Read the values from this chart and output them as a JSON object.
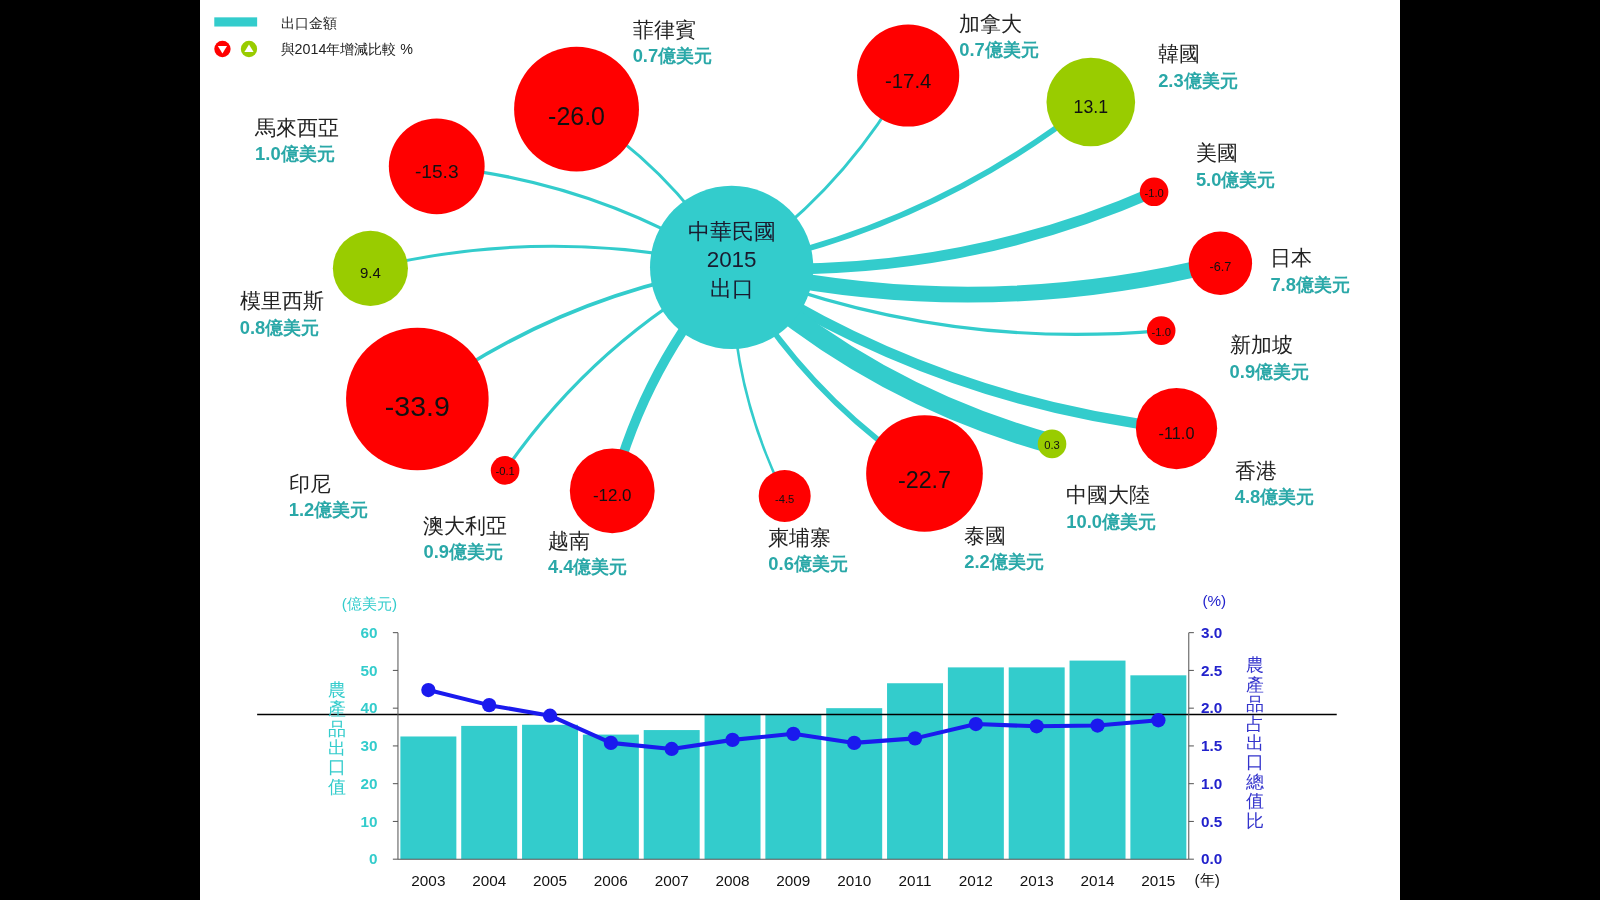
{
  "chart_data": [
    {
      "type": "other",
      "title": "中華民國 2015 出口",
      "legend": "top left",
      "categories": [
        "菲律賓",
        "加拿大",
        "韓國",
        "美國",
        "日本",
        "新加坡",
        "香港",
        "中國大陸",
        "泰國",
        "柬埔寨",
        "越南",
        "澳大利亞",
        "印尼",
        "模里西斯",
        "馬來西亞"
      ],
      "series": [
        {
          "name": "出口金額",
          "color": "#33cccc",
          "values": [
            0.7,
            0.7,
            2.3,
            5.0,
            7.8,
            0.9,
            4.8,
            10.0,
            2.2,
            0.6,
            4.4,
            0.9,
            1.2,
            0.8,
            1.0
          ],
          "value_labels": [
            "0.7億美元",
            "0.7億美元",
            "2.3億美元",
            "5.0億美元",
            "7.8億美元",
            "0.9億美元",
            "4.8億美元",
            "10.0億美元",
            "2.2億美元",
            "0.6億美元",
            "4.4億美元",
            "0.9億美元",
            "1.2億美元",
            "0.8億美元",
            "1.0億美元"
          ]
        },
        {
          "name": "與2014年增減比較 %",
          "colors": [
            "#ff0000",
            "#ff0000",
            "#99cc00",
            "#ff0000",
            "#ff0000",
            "#ff0000",
            "#ff0000",
            "#99cc00",
            "#ff0000",
            "#ff0000",
            "#ff0000",
            "#ff0000",
            "#ff0000",
            "#99cc00",
            "#ff0000"
          ],
          "values": [
            -26.0,
            -17.4,
            13.1,
            -1.0,
            -6.7,
            -1.0,
            -11.0,
            0.3,
            -22.7,
            -4.5,
            -12.0,
            -0.1,
            -33.9,
            9.4,
            -15.3
          ],
          "value_labels": [
            "-26.0",
            "-17.4",
            "13.1",
            "-1.0",
            "-6.7",
            "-1.0",
            "-11.0",
            "0.3",
            "-22.7",
            "-4.5",
            "-12.0",
            "-0.1",
            "-33.9",
            "9.4",
            "-15.3"
          ]
        }
      ]
    },
    {
      "type": "bar",
      "categories": [
        "2003",
        "2004",
        "2005",
        "2006",
        "2007",
        "2008",
        "2009",
        "2010",
        "2011",
        "2012",
        "2013",
        "2014",
        "2015"
      ],
      "series": [
        {
          "type": "bar",
          "color": "#33cccc",
          "values": [
            32.5,
            35.3,
            35.6,
            33.0,
            34.2,
            38.3,
            38.3,
            40.0,
            46.6,
            50.8,
            50.8,
            52.6,
            48.7
          ]
        },
        {
          "type": "line",
          "axis": "y2",
          "color": "#1a1aee",
          "values": [
            2.24,
            2.04,
            1.9,
            1.54,
            1.46,
            1.58,
            1.66,
            1.54,
            1.6,
            1.79,
            1.76,
            1.77,
            1.84
          ]
        }
      ],
      "marker": "circle",
      "ylim": [
        0,
        60
      ],
      "yticks": [
        0,
        10,
        20,
        30,
        40,
        50,
        60
      ],
      "y2lim": [
        0,
        3
      ],
      "y2ticks": [
        {
          "value": 0,
          "label": "0.0"
        },
        {
          "value": 0.5,
          "label": "0.5"
        },
        {
          "value": 1,
          "label": "1.0"
        },
        {
          "value": 1.5,
          "label": "1.5"
        },
        {
          "value": 2,
          "label": "2.0"
        },
        {
          "value": 2.5,
          "label": "2.5"
        },
        {
          "value": 3,
          "label": "3.0"
        }
      ],
      "ylabel": "農產品出口值",
      "y2label": "農產品占出口總值比",
      "annotations": [
        "(億美元)",
        "(%)",
        "(年)"
      ],
      "ref_lines": [
        {
          "axis": "y",
          "value": 38.3,
          "color": "#000000"
        }
      ]
    }
  ]
}
